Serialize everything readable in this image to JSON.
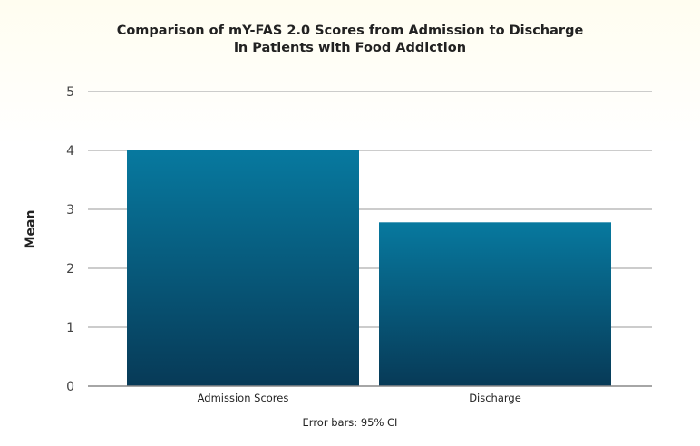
{
  "chart_data": {
    "type": "bar",
    "title_lines": [
      "Comparison of mY-FAS 2.0 Scores from Admission to Discharge",
      "in Patients with Food Addiction"
    ],
    "xlabel": "",
    "ylabel": "Mean",
    "categories": [
      "Admission Scores",
      "Discharge"
    ],
    "values": [
      4.0,
      2.78
    ],
    "ylim": [
      0,
      5
    ],
    "yticks": [
      0,
      1,
      2,
      3,
      4,
      5
    ],
    "grid": true,
    "legend": "none",
    "footnote": "Error bars: 95% CI",
    "colors": {
      "bar_top": "#07799f",
      "bar_bottom": "#073a57",
      "grid": "#bbbbbb",
      "axis": "#888888"
    }
  }
}
